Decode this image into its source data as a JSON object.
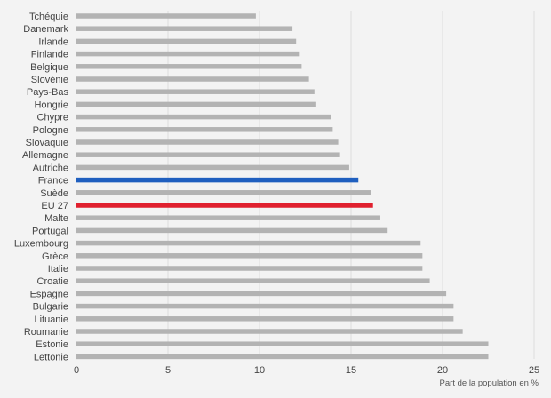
{
  "chart_data": {
    "type": "bar",
    "orientation": "horizontal",
    "categories": [
      "Tchéquie",
      "Danemark",
      "Irlande",
      "Finlande",
      "Belgique",
      "Slovénie",
      "Pays-Bas",
      "Hongrie",
      "Chypre",
      "Pologne",
      "Slovaquie",
      "Allemagne",
      "Autriche",
      "France",
      "Suède",
      "EU 27",
      "Malte",
      "Portugal",
      "Luxembourg",
      "Grèce",
      "Italie",
      "Croatie",
      "Espagne",
      "Bulgarie",
      "Lituanie",
      "Roumanie",
      "Estonie",
      "Lettonie"
    ],
    "values": [
      9.8,
      11.8,
      12.0,
      12.2,
      12.3,
      12.7,
      13.0,
      13.1,
      13.9,
      14.0,
      14.3,
      14.4,
      14.9,
      15.4,
      16.1,
      16.2,
      16.6,
      17.0,
      18.8,
      18.9,
      18.9,
      19.3,
      20.2,
      20.6,
      20.6,
      21.1,
      22.5,
      22.5
    ],
    "highlight": {
      "France": "#1f5fbf",
      "EU 27": "#e0202e"
    },
    "default_color": "#b3b3b3",
    "xlim": [
      0,
      25
    ],
    "xticks": [
      0,
      5,
      10,
      15,
      20,
      25
    ],
    "xlabel": "Part de la population en %",
    "title": "",
    "grid": "vertical"
  }
}
